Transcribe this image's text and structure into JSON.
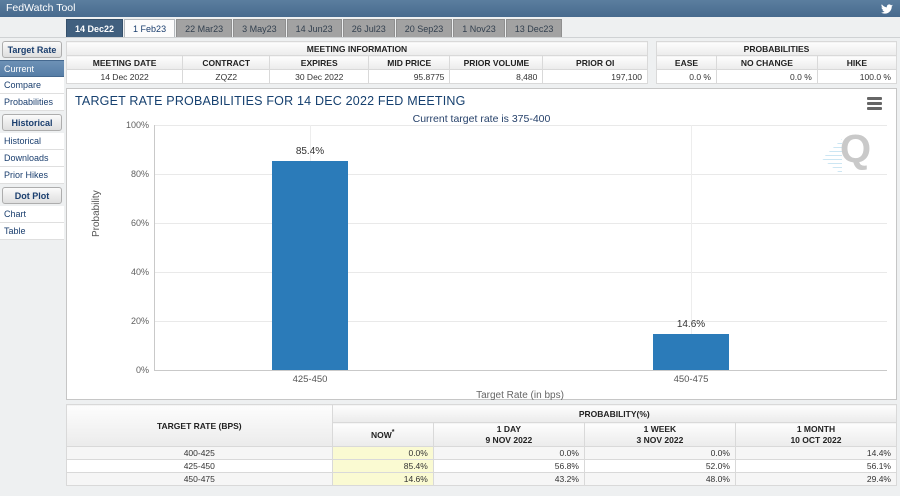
{
  "app": {
    "title": "FedWatch Tool"
  },
  "tabs": [
    {
      "label": "14 Dec22",
      "state": "active"
    },
    {
      "label": "1 Feb23",
      "state": "light"
    },
    {
      "label": "22 Mar23",
      "state": "default"
    },
    {
      "label": "3 May23",
      "state": "default"
    },
    {
      "label": "14 Jun23",
      "state": "default"
    },
    {
      "label": "26 Jul23",
      "state": "default"
    },
    {
      "label": "20 Sep23",
      "state": "default"
    },
    {
      "label": "1 Nov23",
      "state": "default"
    },
    {
      "label": "13 Dec23",
      "state": "default"
    }
  ],
  "sidebar": {
    "sections": [
      {
        "header": "Target Rate",
        "items": [
          {
            "label": "Current",
            "selected": true
          },
          {
            "label": "Compare",
            "selected": false
          },
          {
            "label": "Probabilities",
            "selected": false
          }
        ]
      },
      {
        "header": "Historical",
        "items": [
          {
            "label": "Historical",
            "selected": false
          },
          {
            "label": "Downloads",
            "selected": false
          },
          {
            "label": "Prior Hikes",
            "selected": false
          }
        ]
      },
      {
        "header": "Dot Plot",
        "items": [
          {
            "label": "Chart",
            "selected": false
          },
          {
            "label": "Table",
            "selected": false
          }
        ]
      }
    ]
  },
  "meeting_info": {
    "title": "MEETING INFORMATION",
    "columns": [
      "MEETING DATE",
      "CONTRACT",
      "EXPIRES",
      "MID PRICE",
      "PRIOR VOLUME",
      "PRIOR OI"
    ],
    "values": [
      "14 Dec 2022",
      "ZQZ2",
      "30 Dec 2022",
      "95.8775",
      "8,480",
      "197,100"
    ]
  },
  "probabilities": {
    "title": "PROBABILITIES",
    "columns": [
      "EASE",
      "NO CHANGE",
      "HIKE"
    ],
    "values": [
      "0.0 %",
      "0.0 %",
      "100.0 %"
    ]
  },
  "chart": {
    "title": "TARGET RATE PROBABILITIES FOR 14 DEC 2022 FED MEETING",
    "subtitle": "Current target rate is 375-400",
    "menu_icon": "hamburger-menu",
    "watermark_letter": "Q",
    "chart_data": {
      "type": "bar",
      "categories": [
        "425-450",
        "450-475"
      ],
      "values": [
        85.4,
        14.6
      ],
      "data_labels": [
        "85.4%",
        "14.6%"
      ],
      "title": "TARGET RATE PROBABILITIES FOR 14 DEC 2022 FED MEETING",
      "xlabel": "Target Rate (in bps)",
      "ylabel": "Probability",
      "ylim": [
        0,
        100
      ],
      "yticks": [
        "0%",
        "20%",
        "40%",
        "60%",
        "80%",
        "100%"
      ],
      "grid": true,
      "legend": "none",
      "bar_color": "#2b7bb9"
    }
  },
  "history_table": {
    "col1_header": "TARGET RATE (BPS)",
    "group_header": "PROBABILITY(%)",
    "now_header": "NOW",
    "now_superscript": "*",
    "period_headers": [
      {
        "label": "1 DAY",
        "date": "9 NOV 2022"
      },
      {
        "label": "1 WEEK",
        "date": "3 NOV 2022"
      },
      {
        "label": "1 MONTH",
        "date": "10 OCT 2022"
      }
    ],
    "rows": [
      {
        "target_rate": "400-425",
        "now": "0.0%",
        "day": "0.0%",
        "week": "0.0%",
        "month": "14.4%"
      },
      {
        "target_rate": "425-450",
        "now": "85.4%",
        "day": "56.8%",
        "week": "52.0%",
        "month": "56.1%"
      },
      {
        "target_rate": "450-475",
        "now": "14.6%",
        "day": "43.2%",
        "week": "48.0%",
        "month": "29.4%"
      }
    ]
  },
  "colors": {
    "topbar": "#476a8e",
    "active_tab": "#41607f",
    "selected_sidebar_item": "#567da6",
    "bar": "#2b7bb9",
    "now_column_highlight": "#fafad2",
    "title_navy": "#16406f"
  }
}
